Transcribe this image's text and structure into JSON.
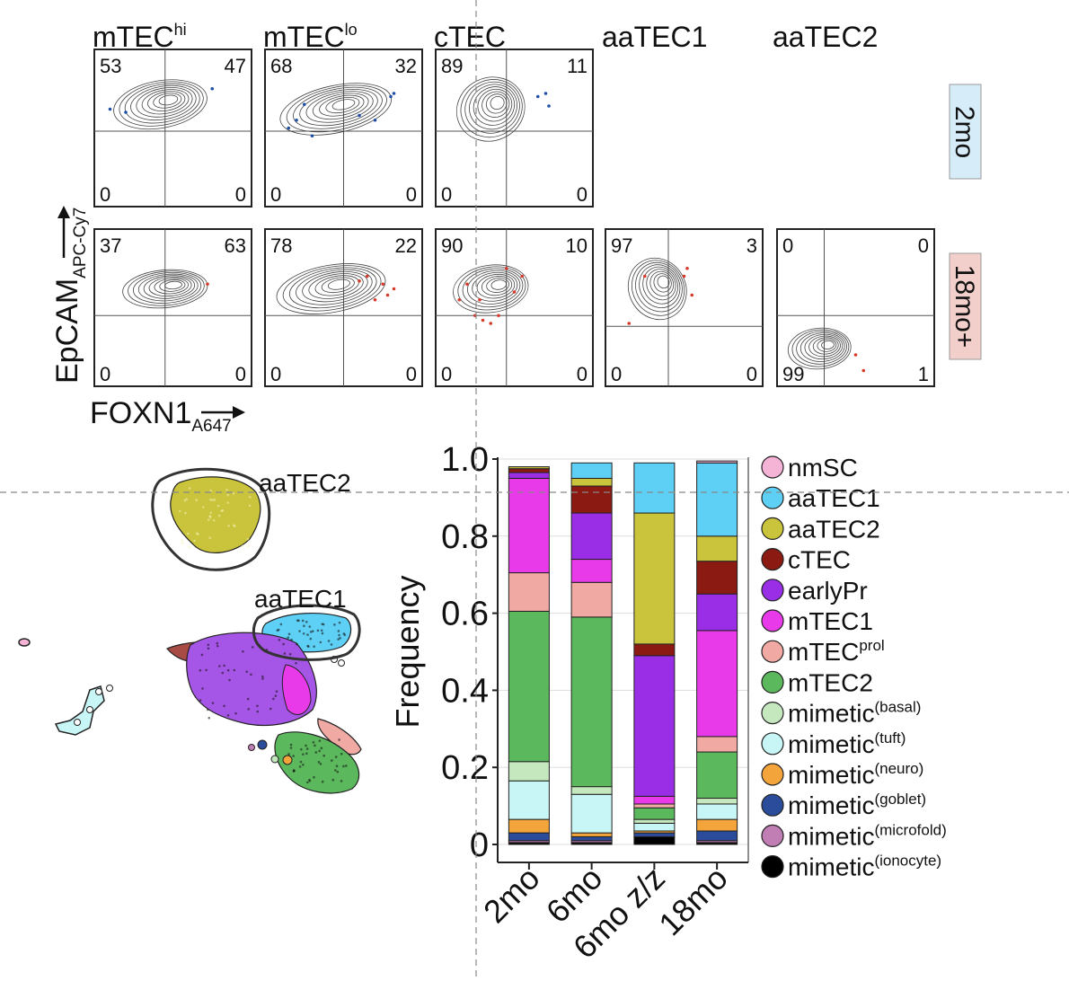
{
  "facs": {
    "columns": [
      {
        "base": "mTEC",
        "sup": "hi"
      },
      {
        "base": "mTEC",
        "sup": "lo"
      },
      {
        "base": "cTEC",
        "sup": ""
      },
      {
        "base": "aaTEC1",
        "sup": ""
      },
      {
        "base": "aaTEC2",
        "sup": ""
      }
    ],
    "rows": [
      {
        "label": "2mo",
        "bg": "#d6ecf8",
        "dot_color": "#1f4fa8"
      },
      {
        "label": "18mo+",
        "bg": "#f2cfcb",
        "dot_color": "#d63a2a"
      }
    ],
    "panels": [
      {
        "row": 0,
        "col": 0,
        "q": {
          "tl": "53",
          "tr": "47",
          "bl": "0",
          "br": "0"
        }
      },
      {
        "row": 0,
        "col": 1,
        "q": {
          "tl": "68",
          "tr": "32",
          "bl": "0",
          "br": "0"
        }
      },
      {
        "row": 0,
        "col": 2,
        "q": {
          "tl": "89",
          "tr": "11",
          "bl": "0",
          "br": "0"
        }
      },
      {
        "row": 1,
        "col": 0,
        "q": {
          "tl": "37",
          "tr": "63",
          "bl": "0",
          "br": "0"
        }
      },
      {
        "row": 1,
        "col": 1,
        "q": {
          "tl": "78",
          "tr": "22",
          "bl": "0",
          "br": "0"
        }
      },
      {
        "row": 1,
        "col": 2,
        "q": {
          "tl": "90",
          "tr": "10",
          "bl": "0",
          "br": "0"
        }
      },
      {
        "row": 1,
        "col": 3,
        "q": {
          "tl": "97",
          "tr": "3",
          "bl": "0",
          "br": "0"
        }
      },
      {
        "row": 1,
        "col": 4,
        "q": {
          "tl": "0",
          "tr": "0",
          "bl": "99",
          "br": "1"
        }
      }
    ],
    "y_axis": {
      "main": "EpCAM",
      "sub": "APC-Cy7"
    },
    "x_axis": {
      "main": "FOXN1",
      "sub": "A647"
    }
  },
  "umap": {
    "labels": [
      "aaTEC2",
      "aaTEC1"
    ]
  },
  "chart_data": {
    "type": "bar",
    "stacked": true,
    "categories": [
      "2mo",
      "6mo",
      "6mo z/z",
      "18mo"
    ],
    "ylabel": "Frequency",
    "xlabel": "",
    "ylim": [
      0,
      1.0
    ],
    "yticks": [
      "0",
      "0.2",
      "0.4",
      "0.6",
      "0.8",
      "1.0"
    ],
    "grid": true,
    "legend_position": "right",
    "series": [
      {
        "name": "mimetic",
        "sup": "(ionocyte)",
        "color": "#000000",
        "values": [
          0.005,
          0.005,
          0.02,
          0.005
        ]
      },
      {
        "name": "mimetic",
        "sup": "(microfold)",
        "color": "#c17eb5",
        "values": [
          0.005,
          0.005,
          0.0,
          0.005
        ]
      },
      {
        "name": "mimetic",
        "sup": "(goblet)",
        "color": "#2b4c9b",
        "values": [
          0.02,
          0.01,
          0.01,
          0.025
        ]
      },
      {
        "name": "mimetic",
        "sup": "(neuro)",
        "color": "#f3a43b",
        "values": [
          0.035,
          0.01,
          0.005,
          0.03
        ]
      },
      {
        "name": "mimetic",
        "sup": "(tuft)",
        "color": "#c8f5f5",
        "values": [
          0.1,
          0.1,
          0.02,
          0.04
        ]
      },
      {
        "name": "mimetic",
        "sup": "(basal)",
        "color": "#c5e8be",
        "values": [
          0.05,
          0.02,
          0.01,
          0.015
        ]
      },
      {
        "name": "mTEC2",
        "sup": "",
        "color": "#5bb85d",
        "values": [
          0.39,
          0.44,
          0.03,
          0.12
        ]
      },
      {
        "name": "mTEC",
        "sup": "prol",
        "color": "#f1a9a4",
        "values": [
          0.1,
          0.09,
          0.01,
          0.04
        ]
      },
      {
        "name": "mTEC1",
        "sup": "",
        "color": "#e83ae8",
        "values": [
          0.245,
          0.06,
          0.02,
          0.275
        ]
      },
      {
        "name": "earlyPr",
        "sup": "",
        "color": "#9a2ee6",
        "values": [
          0.015,
          0.12,
          0.365,
          0.095
        ]
      },
      {
        "name": "cTEC",
        "sup": "",
        "color": "#8b1a12",
        "values": [
          0.01,
          0.07,
          0.03,
          0.085
        ]
      },
      {
        "name": "aaTEC2",
        "sup": "",
        "color": "#c9c43c",
        "values": [
          0.005,
          0.02,
          0.34,
          0.065
        ]
      },
      {
        "name": "aaTEC1",
        "sup": "",
        "color": "#5fd0f5",
        "values": [
          0.0,
          0.04,
          0.13,
          0.19
        ]
      },
      {
        "name": "nmSC",
        "sup": "",
        "color": "#f5b3d6",
        "values": [
          0.0,
          0.0,
          0.0,
          0.005
        ]
      }
    ]
  }
}
